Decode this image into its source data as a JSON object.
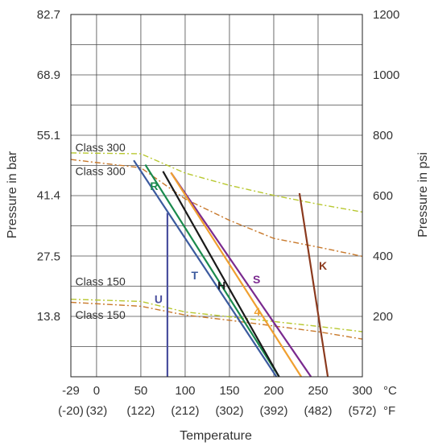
{
  "chart_data": {
    "type": "line",
    "xlabel": "Temperature",
    "ylabel_left": "Pressure in bar",
    "ylabel_right": "Pressure in psi",
    "xlim": [
      -29,
      300
    ],
    "ylim_left": [
      0,
      82.7
    ],
    "ylim_right": [
      0,
      1200
    ],
    "grid": true,
    "x_ticks": [
      -29,
      0,
      50,
      100,
      150,
      200,
      250,
      300
    ],
    "x_tick_labels_c": [
      "-29",
      "0",
      "50",
      "100",
      "150",
      "200",
      "250",
      "300"
    ],
    "x_tick_labels_f": [
      "(-20)",
      "(32)",
      "(122)",
      "(212)",
      "(302)",
      "(392)",
      "(482)",
      "(572)"
    ],
    "x_unit_c": "°C",
    "x_unit_f": "°F",
    "y_left_ticks": [
      13.8,
      27.5,
      41.4,
      55.1,
      68.9,
      82.7
    ],
    "y_left_tick_labels": [
      "13.8",
      "27.5",
      "41.4",
      "55.1",
      "68.9",
      "82.7"
    ],
    "y_right_ticks": [
      200,
      400,
      600,
      800,
      1000,
      1200
    ],
    "y_right_tick_labels": [
      "200",
      "400",
      "600",
      "800",
      "1000",
      "1200"
    ],
    "series": [
      {
        "name": "T",
        "color": "#3b5a9e",
        "style": "solid",
        "x": [
          42,
          203
        ],
        "y": [
          49.4,
          0
        ]
      },
      {
        "name": "R",
        "color": "#1a8a4d",
        "style": "solid",
        "x": [
          55,
          206
        ],
        "y": [
          48.4,
          0
        ]
      },
      {
        "name": "H",
        "color": "#1a1a1a",
        "style": "solid",
        "x": [
          75,
          206
        ],
        "y": [
          46.9,
          0
        ]
      },
      {
        "name": "S",
        "color": "#7a2a8f",
        "style": "solid",
        "x": [
          84,
          242
        ],
        "y": [
          46.6,
          0
        ]
      },
      {
        "name": "4",
        "color": "#f0a030",
        "style": "solid",
        "x": [
          84,
          231
        ],
        "y": [
          46.6,
          0
        ]
      },
      {
        "name": "U",
        "color": "#4a4f9e",
        "style": "solid",
        "x": [
          80,
          80
        ],
        "y": [
          37.4,
          0
        ]
      },
      {
        "name": "K",
        "color": "#8b3a1e",
        "style": "solid",
        "x": [
          229,
          261
        ],
        "y": [
          41.9,
          0
        ]
      }
    ],
    "limit_lines": [
      {
        "label": "Class 300",
        "color": "#b8c830",
        "style": "dashdot",
        "x": [
          -29,
          50,
          100,
          150,
          200,
          250,
          300
        ],
        "y": [
          51.1,
          50.9,
          46.5,
          43.7,
          41.4,
          39.4,
          37.6
        ]
      },
      {
        "label": "Class 300",
        "color": "#c8782a",
        "style": "dashdot",
        "x": [
          -29,
          50,
          100,
          150,
          200,
          250,
          300
        ],
        "y": [
          49.6,
          47.7,
          40.6,
          35.7,
          31.6,
          29.6,
          27.5
        ]
      },
      {
        "label": "Class 150",
        "color": "#b8c830",
        "style": "dashdot",
        "x": [
          -29,
          50,
          100,
          150,
          200,
          250,
          300
        ],
        "y": [
          17.7,
          17.2,
          14.8,
          13.7,
          12.6,
          11.5,
          10.3
        ]
      },
      {
        "label": "Class 150",
        "color": "#c8782a",
        "style": "dashdot",
        "x": [
          -29,
          50,
          100,
          150,
          200,
          250,
          300
        ],
        "y": [
          17.0,
          16.1,
          14.1,
          12.9,
          11.6,
          10.3,
          8.6
        ]
      }
    ],
    "annotations": [
      {
        "text": "Class 300",
        "x": -24,
        "y": 51.5
      },
      {
        "text": "Class 300",
        "x": -24,
        "y": 46.0
      },
      {
        "text": "Class 150",
        "x": -24,
        "y": 20.9
      },
      {
        "text": "Class 150",
        "x": -24,
        "y": 13.2
      }
    ]
  }
}
